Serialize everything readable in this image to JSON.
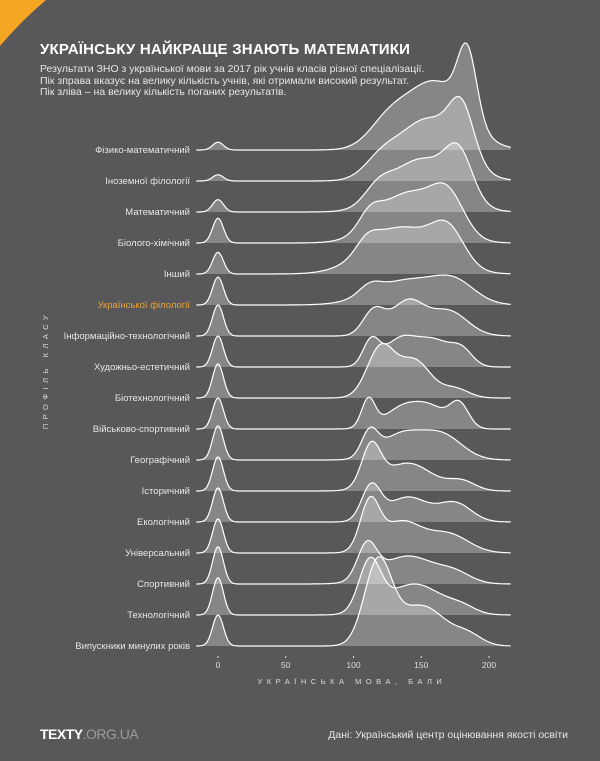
{
  "header": {
    "title": "УКРАЇНСЬКУ НАЙКРАЩЕ ЗНАЮТЬ МАТЕМАТИКИ",
    "subtitle_lines": [
      "Результати ЗНО з української мови за 2017 рік учнів класів різної спеціалізації.",
      "Пік зправа вказує на велику кількість учнів, які отримали високий результат.",
      "Пік зліва – на велику кількість поганих результатів."
    ]
  },
  "footer": {
    "logo_main": "TEXTY",
    "logo_domain": ".ORG.UA",
    "source": "Дані: Український центр оцінювання якості освіти"
  },
  "colors": {
    "background": "#58585a",
    "accent": "#f5a623",
    "highlight_label": "#e8a33a",
    "ridge_fill": "rgba(255,255,255,0.28)",
    "ridge_stroke": "#ffffff"
  },
  "chart_data": {
    "type": "ridgeline",
    "title": "УКРАЇНСЬКУ НАЙКРАЩЕ ЗНАЮТЬ МАТЕМАТИКИ",
    "xlabel": "УКРАЇНСЬКА МОВА, БАЛИ",
    "ylabel": "ПРОФІЛЬ КЛАСУ",
    "xlim": [
      -16,
      216
    ],
    "xticks": [
      0,
      50,
      100,
      150,
      200
    ],
    "grid": false,
    "highlighted": "Української філології",
    "density_note_units": "relative density (approximate mixture components: [score, spread, relative height])",
    "series": [
      {
        "name": "Фізико-математичний",
        "zero_peak": 0.25,
        "components": [
          [
            184,
            7,
            2.2
          ],
          [
            160,
            22,
            2.2
          ],
          [
            125,
            14,
            0.7
          ]
        ]
      },
      {
        "name": "Іноземної філології",
        "zero_peak": 0.2,
        "components": [
          [
            180,
            9,
            1.6
          ],
          [
            155,
            22,
            2.0
          ],
          [
            120,
            12,
            0.5
          ]
        ]
      },
      {
        "name": "Математичний",
        "zero_peak": 0.4,
        "components": [
          [
            178,
            10,
            1.4
          ],
          [
            150,
            22,
            1.7
          ],
          [
            118,
            10,
            0.5
          ]
        ]
      },
      {
        "name": "Біолого-хімічний",
        "zero_peak": 0.8,
        "components": [
          [
            170,
            12,
            1.2
          ],
          [
            140,
            22,
            1.6
          ],
          [
            112,
            8,
            0.5
          ]
        ]
      },
      {
        "name": "Інший",
        "zero_peak": 0.7,
        "components": [
          [
            170,
            12,
            1.1
          ],
          [
            135,
            25,
            1.5
          ],
          [
            110,
            8,
            0.4
          ]
        ]
      },
      {
        "name": "Української філології",
        "zero_peak": 0.9,
        "components": [
          [
            175,
            15,
            0.6
          ],
          [
            140,
            25,
            0.8
          ],
          [
            112,
            8,
            0.3
          ]
        ]
      },
      {
        "name": "Інформаційно-технологічний",
        "zero_peak": 1.0,
        "components": [
          [
            140,
            12,
            1.1
          ],
          [
            115,
            8,
            0.8
          ],
          [
            170,
            14,
            0.8
          ]
        ]
      },
      {
        "name": "Художньо-естетичний",
        "zero_peak": 1.0,
        "components": [
          [
            113,
            6,
            0.8
          ],
          [
            135,
            12,
            0.9
          ],
          [
            160,
            12,
            0.8
          ],
          [
            180,
            8,
            0.5
          ]
        ]
      },
      {
        "name": "Біотехнологічний",
        "zero_peak": 1.1,
        "components": [
          [
            120,
            10,
            1.6
          ],
          [
            145,
            12,
            1.2
          ],
          [
            175,
            10,
            0.3
          ]
        ]
      },
      {
        "name": "Військово-спортивний",
        "zero_peak": 1.0,
        "components": [
          [
            111,
            5,
            0.9
          ],
          [
            140,
            15,
            0.8
          ],
          [
            178,
            7,
            0.8
          ],
          [
            160,
            10,
            0.4
          ]
        ]
      },
      {
        "name": "Географічний",
        "zero_peak": 1.1,
        "components": [
          [
            112,
            6,
            0.8
          ],
          [
            135,
            15,
            0.8
          ],
          [
            165,
            15,
            0.8
          ]
        ]
      },
      {
        "name": "Історичний",
        "zero_peak": 1.1,
        "components": [
          [
            113,
            7,
            1.3
          ],
          [
            140,
            18,
            0.9
          ],
          [
            180,
            10,
            0.3
          ]
        ]
      },
      {
        "name": "Екологічний",
        "zero_peak": 1.1,
        "components": [
          [
            113,
            7,
            1.1
          ],
          [
            140,
            15,
            0.8
          ],
          [
            175,
            12,
            0.6
          ]
        ]
      },
      {
        "name": "Універсальний",
        "zero_peak": 1.1,
        "components": [
          [
            112,
            7,
            1.5
          ],
          [
            135,
            15,
            1.0
          ],
          [
            170,
            15,
            0.6
          ]
        ]
      },
      {
        "name": "Спортивний",
        "zero_peak": 1.2,
        "components": [
          [
            110,
            7,
            1.1
          ],
          [
            140,
            20,
            0.9
          ],
          [
            175,
            12,
            0.3
          ]
        ]
      },
      {
        "name": "Технологічний",
        "zero_peak": 1.2,
        "components": [
          [
            112,
            8,
            1.6
          ],
          [
            145,
            20,
            1.0
          ],
          [
            180,
            10,
            0.2
          ]
        ]
      },
      {
        "name": "Випускники минулих років",
        "zero_peak": 1.0,
        "components": [
          [
            118,
            10,
            2.6
          ],
          [
            150,
            18,
            1.3
          ],
          [
            185,
            10,
            0.3
          ]
        ]
      }
    ]
  }
}
